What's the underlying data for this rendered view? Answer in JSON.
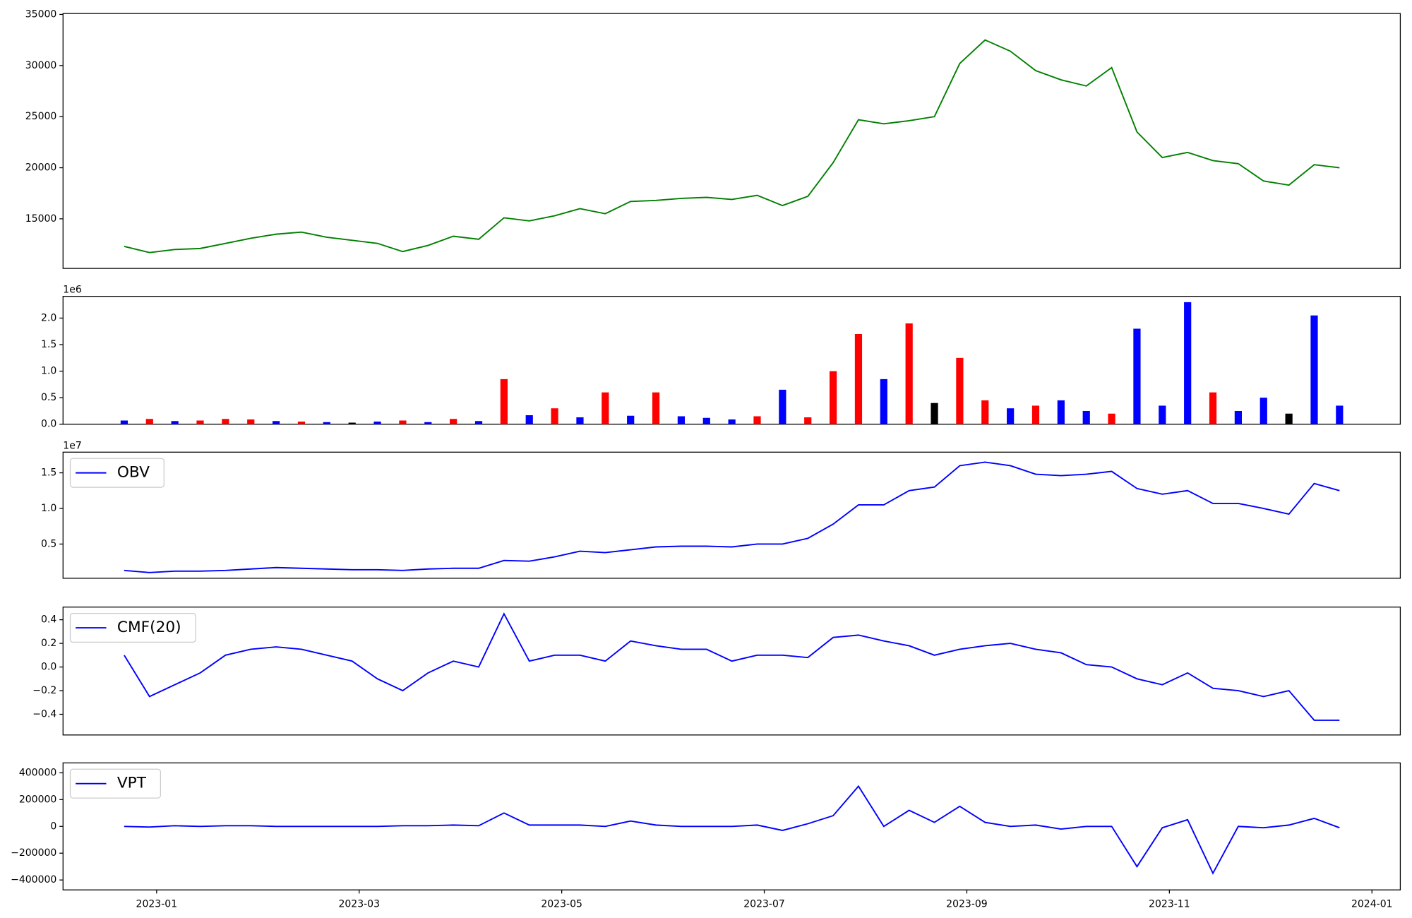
{
  "chart_data": [
    {
      "type": "line",
      "xlim": [
        0.076,
        13.28
      ],
      "ylim": [
        10150,
        35090
      ],
      "yticks": [
        15000,
        20000,
        25000,
        30000,
        35000
      ],
      "x": [
        0.68,
        0.93,
        1.18,
        1.43,
        1.68,
        1.93,
        2.18,
        2.43,
        2.68,
        2.93,
        3.18,
        3.43,
        3.68,
        3.93,
        4.18,
        4.43,
        4.68,
        4.93,
        5.18,
        5.43,
        5.68,
        5.93,
        6.18,
        6.43,
        6.68,
        6.93,
        7.18,
        7.43,
        7.68,
        7.93,
        8.18,
        8.43,
        8.68,
        8.93,
        9.18,
        9.43,
        9.68,
        9.93,
        10.18,
        10.43,
        10.68,
        10.93,
        11.18,
        11.43,
        11.68,
        11.93,
        12.18,
        12.43,
        12.68
      ],
      "series": [
        {
          "color": "green",
          "values": [
            12300,
            11700,
            12000,
            12100,
            12600,
            13100,
            13500,
            13700,
            13200,
            12900,
            12600,
            11800,
            12400,
            13300,
            13000,
            15100,
            14800,
            15300,
            16000,
            15500,
            16700,
            16800,
            17000,
            17100,
            16900,
            17300,
            16300,
            17200,
            20500,
            24700,
            24300,
            24600,
            25000,
            30200,
            32500,
            31400,
            29500,
            28600,
            28000,
            29800,
            23500,
            21000,
            21500,
            20700,
            20400,
            18700,
            18300,
            20300,
            20000
          ]
        }
      ]
    },
    {
      "type": "bar",
      "xlim": [
        0.076,
        13.28
      ],
      "ylim": [
        0,
        2410000
      ],
      "offset_label": "1e6",
      "yticks": [
        {
          "value": 0,
          "label": "0.0"
        },
        {
          "value": 500000,
          "label": "0.5"
        },
        {
          "value": 1000000,
          "label": "1.0"
        },
        {
          "value": 1500000,
          "label": "1.5"
        },
        {
          "value": 2000000,
          "label": "2.0"
        }
      ],
      "x": [
        0.68,
        0.93,
        1.18,
        1.43,
        1.68,
        1.93,
        2.18,
        2.43,
        2.68,
        2.93,
        3.18,
        3.43,
        3.68,
        3.93,
        4.18,
        4.43,
        4.68,
        4.93,
        5.18,
        5.43,
        5.68,
        5.93,
        6.18,
        6.43,
        6.68,
        6.93,
        7.18,
        7.43,
        7.68,
        7.93,
        8.18,
        8.43,
        8.68,
        8.93,
        9.18,
        9.43,
        9.68,
        9.93,
        10.18,
        10.43,
        10.68,
        10.93,
        11.18,
        11.43,
        11.68,
        11.93,
        12.18,
        12.43,
        12.68
      ],
      "values": [
        70000,
        100000,
        60000,
        70000,
        100000,
        90000,
        60000,
        50000,
        40000,
        30000,
        50000,
        70000,
        40000,
        100000,
        60000,
        850000,
        170000,
        300000,
        130000,
        600000,
        160000,
        600000,
        150000,
        120000,
        90000,
        150000,
        650000,
        130000,
        1000000,
        1700000,
        850000,
        1900000,
        400000,
        1250000,
        450000,
        300000,
        350000,
        450000,
        250000,
        200000,
        1800000,
        350000,
        2300000,
        600000,
        250000,
        500000,
        200000,
        2050000,
        350000
      ],
      "colors": [
        "blue",
        "red",
        "blue",
        "red",
        "red",
        "red",
        "blue",
        "red",
        "blue",
        "black",
        "blue",
        "red",
        "blue",
        "red",
        "blue",
        "red",
        "blue",
        "red",
        "blue",
        "red",
        "blue",
        "red",
        "blue",
        "blue",
        "blue",
        "red",
        "blue",
        "red",
        "red",
        "red",
        "blue",
        "red",
        "black",
        "red",
        "red",
        "blue",
        "red",
        "blue",
        "blue",
        "red",
        "blue",
        "blue",
        "blue",
        "red",
        "blue",
        "blue",
        "black",
        "blue",
        "blue"
      ]
    },
    {
      "type": "line",
      "xlim": [
        0.076,
        13.28
      ],
      "ylim": [
        200000,
        17900000
      ],
      "offset_label": "1e7",
      "legend": "upper left",
      "yticks": [
        {
          "value": 5000000,
          "label": "0.5"
        },
        {
          "value": 10000000,
          "label": "1.0"
        },
        {
          "value": 15000000,
          "label": "1.5"
        }
      ],
      "x": [
        0.68,
        0.93,
        1.18,
        1.43,
        1.68,
        1.93,
        2.18,
        2.43,
        2.68,
        2.93,
        3.18,
        3.43,
        3.68,
        3.93,
        4.18,
        4.43,
        4.68,
        4.93,
        5.18,
        5.43,
        5.68,
        5.93,
        6.18,
        6.43,
        6.68,
        6.93,
        7.18,
        7.43,
        7.68,
        7.93,
        8.18,
        8.43,
        8.68,
        8.93,
        9.18,
        9.43,
        9.68,
        9.93,
        10.18,
        10.43,
        10.68,
        10.93,
        11.18,
        11.43,
        11.68,
        11.93,
        12.18,
        12.43,
        12.68
      ],
      "series": [
        {
          "name": "OBV",
          "color": "blue",
          "values": [
            1300000,
            1000000,
            1200000,
            1200000,
            1300000,
            1500000,
            1700000,
            1600000,
            1500000,
            1400000,
            1400000,
            1300000,
            1500000,
            1600000,
            1600000,
            2700000,
            2600000,
            3200000,
            4000000,
            3800000,
            4200000,
            4600000,
            4700000,
            4700000,
            4600000,
            5000000,
            5000000,
            5800000,
            7800000,
            10500000,
            10500000,
            12500000,
            13000000,
            16000000,
            16500000,
            16000000,
            14800000,
            14600000,
            14800000,
            15200000,
            12800000,
            12000000,
            12500000,
            10700000,
            10700000,
            10000000,
            9200000,
            13500000,
            12500000
          ]
        }
      ]
    },
    {
      "type": "line",
      "xlim": [
        0.076,
        13.28
      ],
      "ylim": [
        -0.575,
        0.507
      ],
      "legend": "upper left",
      "yticks": [
        {
          "value": -0.4,
          "label": "−0.4"
        },
        {
          "value": -0.2,
          "label": "−0.2"
        },
        {
          "value": 0,
          "label": "0.0"
        },
        0.2,
        0.4
      ],
      "x": [
        0.68,
        0.93,
        1.18,
        1.43,
        1.68,
        1.93,
        2.18,
        2.43,
        2.68,
        2.93,
        3.18,
        3.43,
        3.68,
        3.93,
        4.18,
        4.43,
        4.68,
        4.93,
        5.18,
        5.43,
        5.68,
        5.93,
        6.18,
        6.43,
        6.68,
        6.93,
        7.18,
        7.43,
        7.68,
        7.93,
        8.18,
        8.43,
        8.68,
        8.93,
        9.18,
        9.43,
        9.68,
        9.93,
        10.18,
        10.43,
        10.68,
        10.93,
        11.18,
        11.43,
        11.68,
        11.93,
        12.18,
        12.43,
        12.68
      ],
      "series": [
        {
          "name": "CMF(20)",
          "color": "blue",
          "values": [
            0.1,
            -0.25,
            -0.15,
            -0.05,
            0.1,
            0.15,
            0.17,
            0.15,
            0.1,
            0.05,
            -0.1,
            -0.2,
            -0.05,
            0.05,
            0,
            0.45,
            0.05,
            0.1,
            0.1,
            0.05,
            0.22,
            0.18,
            0.15,
            0.15,
            0.05,
            0.1,
            0.1,
            0.08,
            0.25,
            0.27,
            0.22,
            0.18,
            0.1,
            0.15,
            0.18,
            0.2,
            0.15,
            0.12,
            0.02,
            0,
            -0.1,
            -0.15,
            -0.05,
            -0.18,
            -0.2,
            -0.25,
            -0.2,
            -0.45,
            -0.45
          ]
        }
      ]
    },
    {
      "type": "line",
      "xlim": [
        0.076,
        13.28
      ],
      "ylim": [
        -474000,
        474000
      ],
      "legend": "upper left",
      "yticks": [
        {
          "value": -400000,
          "label": "−400000"
        },
        {
          "value": -200000,
          "label": "−200000"
        },
        0,
        200000,
        400000
      ],
      "xticks": [
        {
          "value": 1,
          "label": "2023-01"
        },
        {
          "value": 3,
          "label": "2023-03"
        },
        {
          "value": 5,
          "label": "2023-05"
        },
        {
          "value": 7,
          "label": "2023-07"
        },
        {
          "value": 9,
          "label": "2023-09"
        },
        {
          "value": 11,
          "label": "2023-11"
        },
        {
          "value": 13,
          "label": "2024-01"
        }
      ],
      "x": [
        0.68,
        0.93,
        1.18,
        1.43,
        1.68,
        1.93,
        2.18,
        2.43,
        2.68,
        2.93,
        3.18,
        3.43,
        3.68,
        3.93,
        4.18,
        4.43,
        4.68,
        4.93,
        5.18,
        5.43,
        5.68,
        5.93,
        6.18,
        6.43,
        6.68,
        6.93,
        7.18,
        7.43,
        7.68,
        7.93,
        8.18,
        8.43,
        8.68,
        8.93,
        9.18,
        9.43,
        9.68,
        9.93,
        10.18,
        10.43,
        10.68,
        10.93,
        11.18,
        11.43,
        11.68,
        11.93,
        12.18,
        12.43,
        12.68
      ],
      "series": [
        {
          "name": "VPT",
          "color": "blue",
          "values": [
            0,
            -5000,
            5000,
            0,
            5000,
            5000,
            0,
            0,
            0,
            0,
            0,
            5000,
            5000,
            10000,
            5000,
            100000,
            10000,
            10000,
            10000,
            0,
            40000,
            10000,
            0,
            0,
            0,
            10000,
            -30000,
            20000,
            80000,
            300000,
            0,
            120000,
            30000,
            150000,
            30000,
            0,
            10000,
            -20000,
            0,
            0,
            -300000,
            -10000,
            50000,
            -350000,
            0,
            -10000,
            10000,
            60000,
            -10000
          ]
        }
      ]
    }
  ]
}
